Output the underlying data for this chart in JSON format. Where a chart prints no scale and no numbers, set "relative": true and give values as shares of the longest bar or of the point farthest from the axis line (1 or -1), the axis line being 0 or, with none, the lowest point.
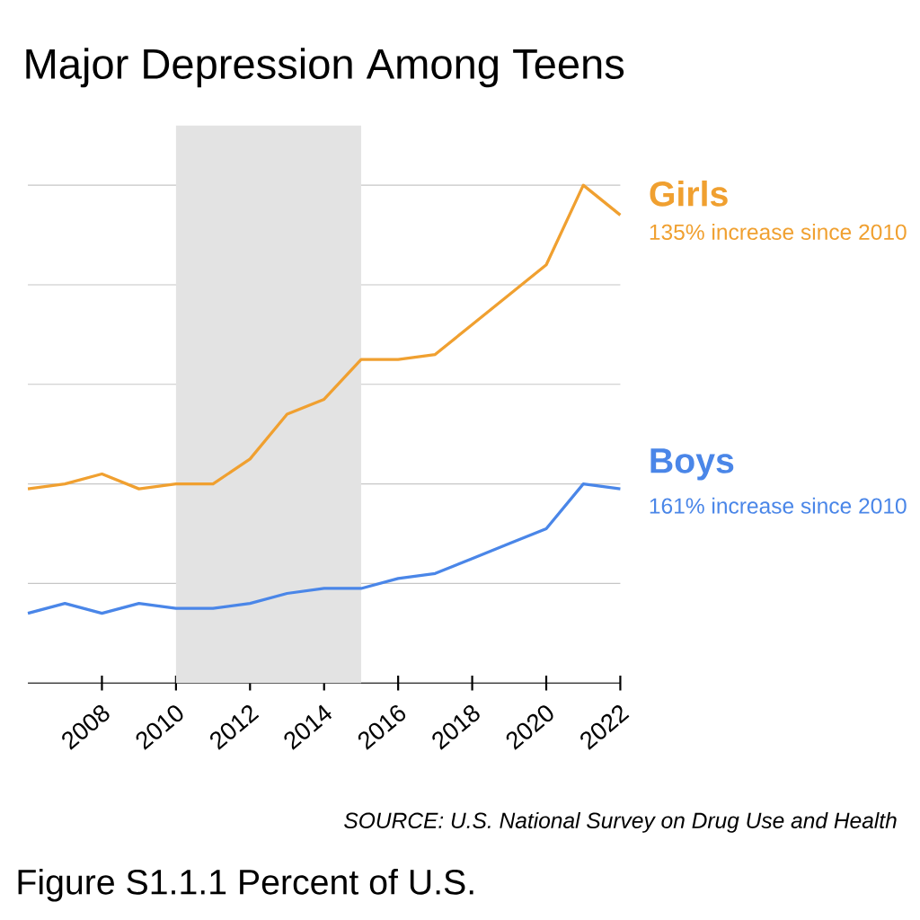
{
  "chart_data": {
    "type": "line",
    "title": "Major Depression Among Teens",
    "relative": true,
    "x": [
      2006,
      2007,
      2008,
      2009,
      2010,
      2011,
      2012,
      2013,
      2014,
      2015,
      2016,
      2017,
      2018,
      2019,
      2020,
      2021,
      2022
    ],
    "series": [
      {
        "name": "Girls",
        "color": "#f0a030",
        "values": [
          0.39,
          0.4,
          0.42,
          0.39,
          0.4,
          0.4,
          0.45,
          0.54,
          0.57,
          0.65,
          0.65,
          0.66,
          0.72,
          0.78,
          0.84,
          1.0,
          0.94
        ]
      },
      {
        "name": "Boys",
        "color": "#4a86e8",
        "values": [
          0.14,
          0.16,
          0.14,
          0.16,
          0.15,
          0.15,
          0.16,
          0.18,
          0.19,
          0.19,
          0.21,
          0.22,
          0.25,
          0.28,
          0.31,
          0.4,
          0.39
        ]
      }
    ],
    "xlim": [
      2006,
      2022
    ],
    "xticks": [
      2008,
      2010,
      2012,
      2014,
      2016,
      2018,
      2020,
      2022
    ],
    "bands": [
      {
        "axis": "x",
        "from": 2010,
        "to": 2015,
        "color": "#e3e3e3"
      }
    ],
    "annotations": [
      "135% increase since 2010",
      "161% increase since 2010",
      "SOURCE: U.S. National Survey on Drug Use and Health",
      "Figure S1.1.1 Percent of U.S."
    ],
    "grid": "y",
    "legend": false,
    "marker": "none",
    "line_style": "solid"
  }
}
